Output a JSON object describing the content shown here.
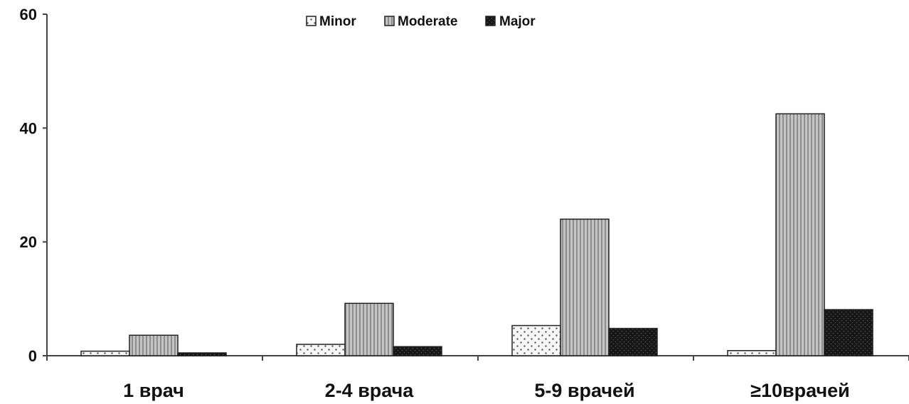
{
  "chart_data": {
    "type": "bar",
    "title": "",
    "xlabel": "",
    "ylabel": "",
    "ylim": [
      0,
      60
    ],
    "yticks": [
      "0",
      "20",
      "40",
      "60"
    ],
    "categories": [
      "1 врач",
      "2-4 врача",
      "5-9 врачей",
      "≥10врачей"
    ],
    "series": [
      {
        "name": "Minor",
        "values": [
          0.8,
          2.0,
          5.3,
          0.9
        ]
      },
      {
        "name": "Moderate",
        "values": [
          3.6,
          9.2,
          24.0,
          42.5
        ]
      },
      {
        "name": "Major",
        "values": [
          0.5,
          1.6,
          4.8,
          8.1
        ]
      }
    ],
    "legend_position": "top-center",
    "grid": false
  },
  "colors": {
    "minor": "#f4f4f4",
    "moderate": "#b9b9b9",
    "major": "#1c1c1c",
    "axis": "#444444"
  }
}
